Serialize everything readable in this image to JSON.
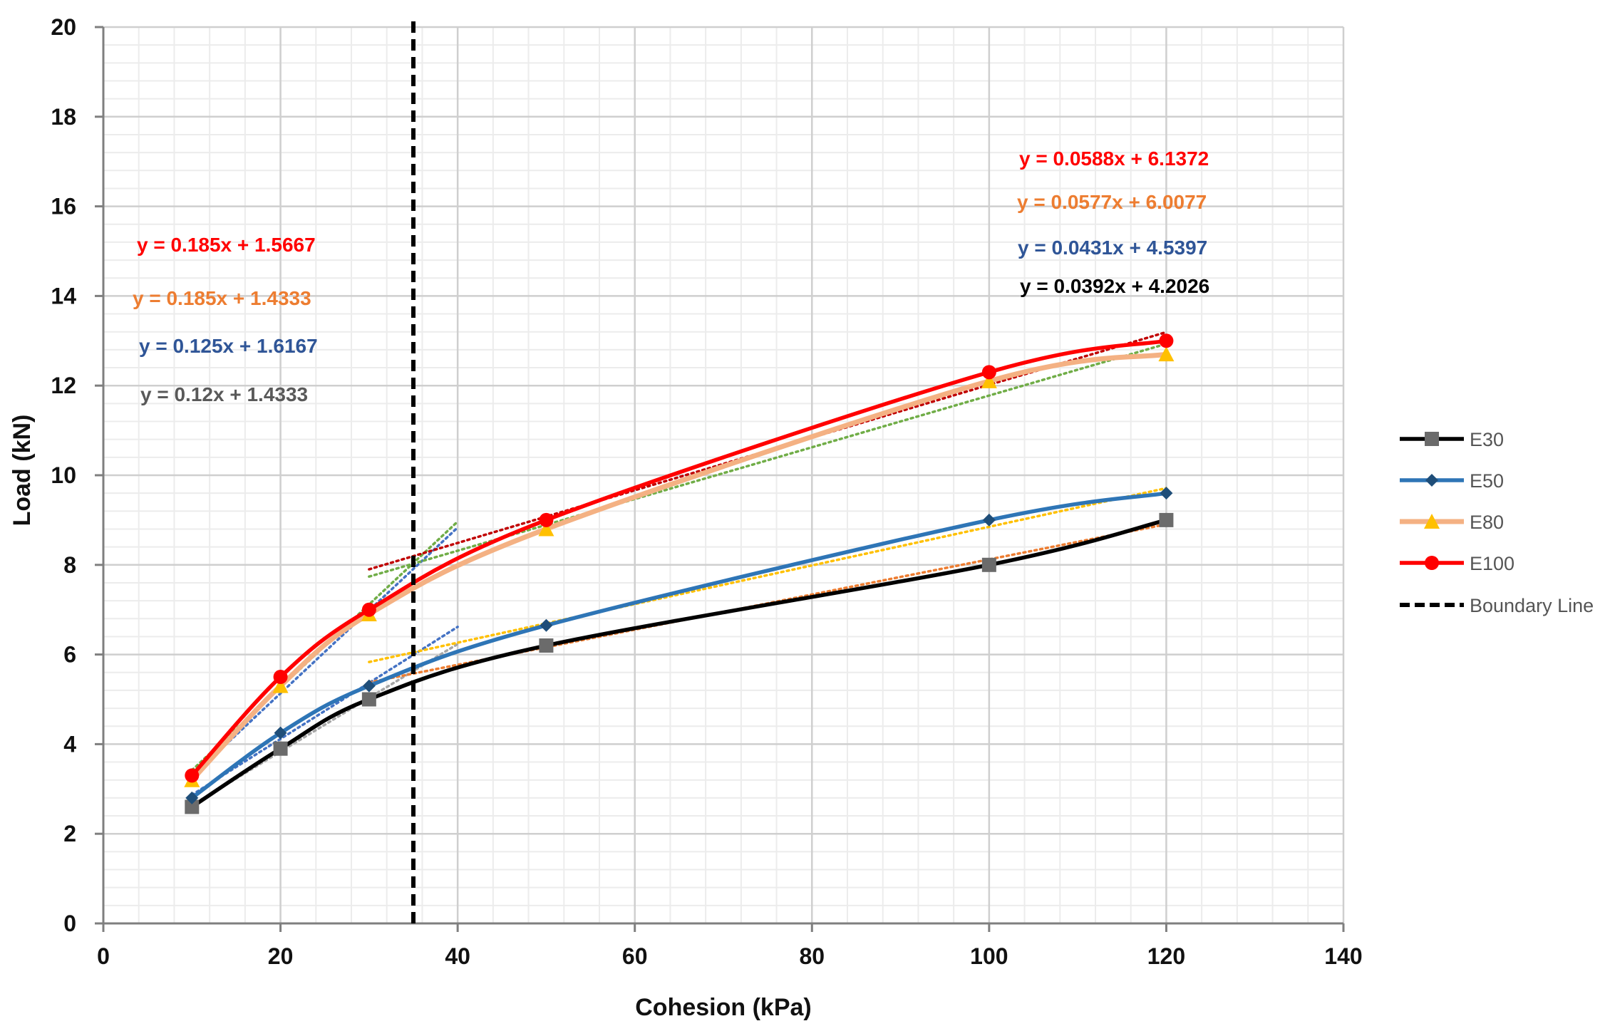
{
  "chart_data": {
    "type": "line",
    "title": "",
    "xlabel": "Cohesion (kPa)",
    "ylabel": "Load (kN)",
    "xlim": [
      0,
      140
    ],
    "ylim": [
      0,
      20
    ],
    "x_ticks": [
      0,
      20,
      40,
      60,
      80,
      100,
      120,
      140
    ],
    "y_ticks": [
      0,
      2,
      4,
      6,
      8,
      10,
      12,
      14,
      16,
      18,
      20
    ],
    "grid": true,
    "legend_position": "right",
    "x": [
      10,
      20,
      30,
      50,
      100,
      120
    ],
    "series": [
      {
        "name": "E30",
        "color": "#000000",
        "marker": "square",
        "marker_color": "#6b6b6b",
        "values": [
          2.6,
          3.9,
          5.0,
          6.2,
          8.0,
          9.0
        ]
      },
      {
        "name": "E50",
        "color": "#2e75b6",
        "marker": "diamond",
        "marker_color": "#1f4e79",
        "values": [
          2.8,
          4.25,
          5.3,
          6.65,
          9.0,
          9.6
        ]
      },
      {
        "name": "E80",
        "color": "#f4b183",
        "marker": "triangle",
        "marker_color": "#ffc000",
        "values": [
          3.2,
          5.3,
          6.9,
          8.8,
          12.1,
          12.7
        ]
      },
      {
        "name": "E100",
        "color": "#ff0000",
        "marker": "circle",
        "marker_color": "#ff0000",
        "values": [
          3.3,
          5.5,
          7.0,
          9.0,
          12.3,
          13.0
        ]
      }
    ],
    "boundary_line": {
      "name": "Boundary Line",
      "x": 35,
      "color": "#000000"
    },
    "trendlines": [
      {
        "slope": 0.12,
        "intercept": 1.4333,
        "x_range": [
          10,
          40
        ],
        "color": "#a6a6a6"
      },
      {
        "slope": 0.125,
        "intercept": 1.6167,
        "x_range": [
          10,
          40
        ],
        "color": "#4472c4"
      },
      {
        "slope": 0.185,
        "intercept": 1.4333,
        "x_range": [
          10,
          40
        ],
        "color": "#4472c4"
      },
      {
        "slope": 0.185,
        "intercept": 1.5667,
        "x_range": [
          10,
          40
        ],
        "color": "#70ad47"
      },
      {
        "slope": 0.0392,
        "intercept": 4.2026,
        "x_range": [
          30,
          120
        ],
        "color": "#ed7d31"
      },
      {
        "slope": 0.0431,
        "intercept": 4.5397,
        "x_range": [
          30,
          120
        ],
        "color": "#ffc000"
      },
      {
        "slope": 0.0577,
        "intercept": 6.0077,
        "x_range": [
          30,
          120
        ],
        "color": "#70ad47"
      },
      {
        "slope": 0.0588,
        "intercept": 6.1372,
        "x_range": [
          30,
          120
        ],
        "color": "#c00000"
      }
    ],
    "equations": [
      {
        "text": "y = 0.185x + 1.5667",
        "color": "#ff0000"
      },
      {
        "text": "y = 0.185x + 1.4333",
        "color": "#ed7d31"
      },
      {
        "text": "y = 0.125x + 1.6167",
        "color": "#2f5597"
      },
      {
        "text": "y = 0.12x + 1.4333",
        "color": "#595959"
      },
      {
        "text": "y = 0.0588x + 6.1372",
        "color": "#ff0000"
      },
      {
        "text": "y = 0.0577x + 6.0077",
        "color": "#ed7d31"
      },
      {
        "text": "y = 0.0431x + 4.5397",
        "color": "#2f5597"
      },
      {
        "text": "y = 0.0392x + 4.2026",
        "color": "#000000"
      }
    ]
  }
}
